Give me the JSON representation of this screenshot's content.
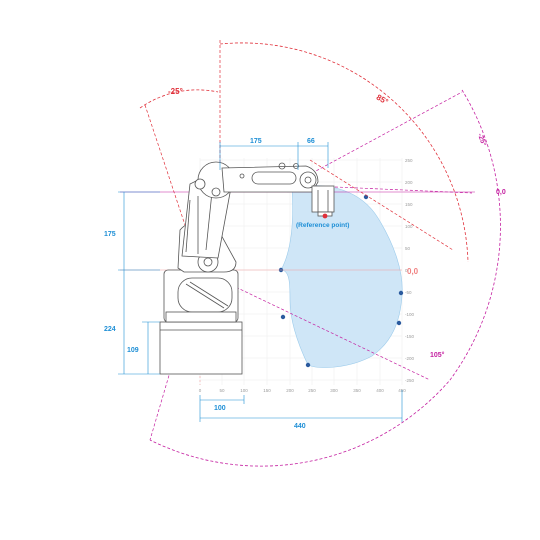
{
  "dimensions": {
    "d175_top": "175",
    "d66": "66",
    "d175_left": "175",
    "d224": "224",
    "d109": "109",
    "d100": "100",
    "d440": "440"
  },
  "angles": {
    "neg25_left": "-25°",
    "a85": "85°",
    "neg25_right": "-25°",
    "a105": "105°"
  },
  "zero_labels": {
    "top": "0,0",
    "mid": "0,0"
  },
  "reference_point": "(Reference point)",
  "y_ticks": [
    "250",
    "200",
    "150",
    "100",
    "50",
    "0",
    "-50",
    "-100",
    "-150",
    "-200",
    "-250"
  ],
  "x_ticks": [
    "0",
    "50",
    "100",
    "150",
    "200",
    "250",
    "300",
    "350",
    "400",
    "450"
  ],
  "colors": {
    "dimension": "#1e8fd6",
    "angle_red": "#e0303a",
    "angle_magenta": "#c41fa0",
    "workspace_fill": "#cfe6f7",
    "point": "#2a5a9e"
  }
}
